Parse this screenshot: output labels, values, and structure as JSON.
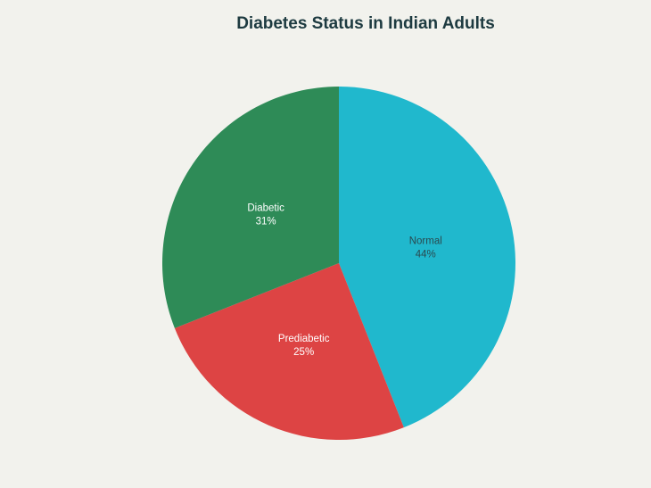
{
  "chart_data": {
    "type": "pie",
    "title": "Diabetes Status in Indian Adults",
    "slices": [
      {
        "label": "Normal",
        "value": 44,
        "display": "44%",
        "color": "#20b8cd",
        "text_color": "#2a4a50"
      },
      {
        "label": "Prediabetic",
        "value": 25,
        "display": "25%",
        "color": "#dd4444",
        "text_color": "#ffffff"
      },
      {
        "label": "Diabetic",
        "value": 31,
        "display": "31%",
        "color": "#2e8b57",
        "text_color": "#ffffff"
      }
    ],
    "start": "top",
    "direction": "clockwise"
  }
}
